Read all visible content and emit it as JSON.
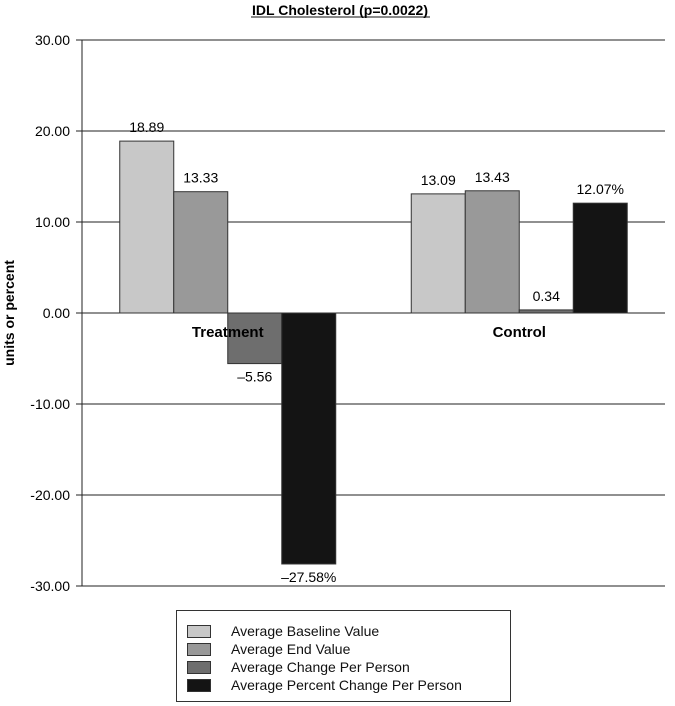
{
  "chart_data": {
    "type": "bar",
    "title": "IDL Cholesterol (p=0.0022)",
    "xlabel": "",
    "ylabel": "units or percent",
    "ylim": [
      -30,
      30
    ],
    "yticks": [
      30,
      20,
      10,
      0,
      -10,
      -20,
      -30
    ],
    "ytick_labels": [
      "30.00",
      "20.00",
      "10.00",
      "0.00",
      "-10.00",
      "-20.00",
      "-30.00"
    ],
    "categories": [
      "Treatment",
      "Control"
    ],
    "series": [
      {
        "name": "Average Baseline Value",
        "values": [
          18.89,
          13.09
        ],
        "labels": [
          "18.89",
          "13.09"
        ],
        "color": "#c8c8c8"
      },
      {
        "name": "Average End Value",
        "values": [
          13.33,
          13.43
        ],
        "labels": [
          "13.33",
          "13.43"
        ],
        "color": "#999999"
      },
      {
        "name": "Average Change Per Person",
        "values": [
          -5.56,
          0.34
        ],
        "labels": [
          "–5.56",
          "0.34"
        ],
        "color": "#6e6e6e"
      },
      {
        "name": "Average Percent Change Per Person",
        "values": [
          -27.58,
          12.07
        ],
        "labels": [
          "–27.58%",
          "12.07%"
        ],
        "color": "#141414"
      }
    ],
    "grid": true,
    "legend_position": "bottom"
  }
}
